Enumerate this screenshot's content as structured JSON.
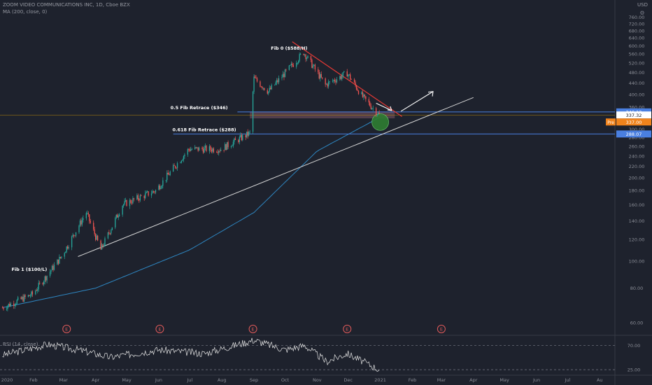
{
  "header": {
    "symbol_line": "ZOOM VIDEO COMMUNICATIONS INC, 1D, Cboe BZX",
    "ma_line": "MA (200, close, 0)",
    "currency": "USD"
  },
  "rsi": {
    "legend": "RSI (14, close)",
    "levels": [
      "70.00",
      "25.00"
    ]
  },
  "chart_data": {
    "type": "candlestick",
    "title": "ZOOM VIDEO COMMUNICATIONS INC, 1D, Cboe BZX",
    "x_axis_ticks": [
      "2020",
      "Feb",
      "Mar",
      "Apr",
      "May",
      "Jun",
      "Jul",
      "Aug",
      "Sep",
      "Oct",
      "Nov",
      "Dec",
      "2021",
      "Feb",
      "Mar",
      "Apr",
      "May",
      "Jun",
      "Jul",
      "Au"
    ],
    "y_axis_ticks": [
      "760.00",
      "720.00",
      "680.00",
      "640.00",
      "600.00",
      "560.00",
      "520.00",
      "480.00",
      "440.00",
      "400.00",
      "360.00",
      "340.00",
      "320.00",
      "300.00",
      "280.00",
      "260.00",
      "240.00",
      "220.00",
      "200.00",
      "180.00",
      "160.00",
      "140.00",
      "120.00",
      "100.00",
      "80.00",
      "60.00"
    ],
    "y_scale": "log",
    "ylim": [
      55,
      790
    ],
    "price_key_points": [
      {
        "date": "2020-01-02",
        "close": 68
      },
      {
        "date": "2020-01-31",
        "close": 76
      },
      {
        "date": "2020-02-28",
        "close": 104
      },
      {
        "date": "2020-03-23",
        "close": 150
      },
      {
        "date": "2020-04-06",
        "close": 110
      },
      {
        "date": "2020-04-27",
        "close": 160
      },
      {
        "date": "2020-05-29",
        "close": 180
      },
      {
        "date": "2020-06-30",
        "close": 254
      },
      {
        "date": "2020-07-31",
        "close": 254
      },
      {
        "date": "2020-08-28",
        "close": 290
      },
      {
        "date": "2020-09-01",
        "close": 457
      },
      {
        "date": "2020-09-15",
        "close": 410
      },
      {
        "date": "2020-10-19",
        "close": 568
      },
      {
        "date": "2020-11-09",
        "close": 433
      },
      {
        "date": "2020-11-30",
        "close": 478
      },
      {
        "date": "2020-12-15",
        "close": 392
      },
      {
        "date": "2020-12-31",
        "close": 337
      }
    ],
    "ma200_key_points": [
      {
        "date": "2020-01-02",
        "value": 68
      },
      {
        "date": "2020-04-01",
        "value": 80
      },
      {
        "date": "2020-07-01",
        "value": 110
      },
      {
        "date": "2020-09-01",
        "value": 150
      },
      {
        "date": "2020-11-01",
        "value": 250
      },
      {
        "date": "2020-12-31",
        "value": 330
      }
    ],
    "rsi_key_points": [
      {
        "date": "2020-01-02",
        "value": 52
      },
      {
        "date": "2020-02-15",
        "value": 72
      },
      {
        "date": "2020-03-20",
        "value": 60
      },
      {
        "date": "2020-04-15",
        "value": 48
      },
      {
        "date": "2020-06-01",
        "value": 62
      },
      {
        "date": "2020-07-15",
        "value": 55
      },
      {
        "date": "2020-09-01",
        "value": 80
      },
      {
        "date": "2020-10-01",
        "value": 62
      },
      {
        "date": "2020-10-20",
        "value": 70
      },
      {
        "date": "2020-11-10",
        "value": 40
      },
      {
        "date": "2020-11-30",
        "value": 55
      },
      {
        "date": "2020-12-31",
        "value": 25
      }
    ],
    "annotations": [
      {
        "text": "Fib 0 ($588/H)",
        "date": "2020-10-19",
        "price": 588
      },
      {
        "text": "0.5 Fib Retrace ($346)",
        "price": 346
      },
      {
        "text": "0.618 Fib Retrace ($288)",
        "price": 288
      },
      {
        "text": "Fib 1 ($100/L)",
        "date": "2020-01-20",
        "price": 100
      }
    ],
    "horizontal_lines": [
      {
        "price": 346.12,
        "label": "346.12",
        "color": "#4a7fe0"
      },
      {
        "price": 288.07,
        "label": "288.07",
        "color": "#4a7fe0"
      }
    ],
    "current_price": {
      "value": 337.32,
      "label": "337.32",
      "pre_label": "Pre",
      "pre_value": "337.00",
      "pre_color": "#f0831c"
    },
    "earnings_markers": [
      "2020-03-04",
      "2020-06-02",
      "2020-08-31",
      "2020-11-30",
      "2021-03-01"
    ],
    "earnings_symbol": "E",
    "colors": {
      "up": "#26a69a",
      "down": "#ef5350",
      "ma": "#2e86c1",
      "trend_support": "#d6d6d6",
      "trend_resistance": "#e53935",
      "arrows": "#ffffff",
      "support_box": "#5c4352",
      "target_circle": "#2e7d32"
    }
  }
}
